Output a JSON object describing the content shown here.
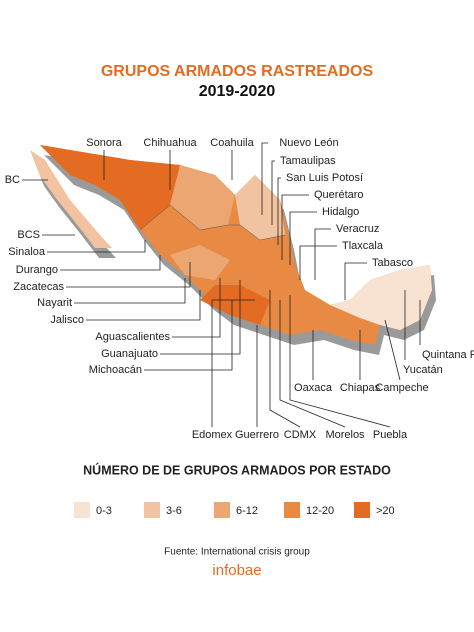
{
  "header": {
    "title": "GRUPOS ARMADOS RASTREADOS",
    "subtitle": "2019-2020"
  },
  "map": {
    "labels": [
      "Sonora",
      "Chihuahua",
      "Coahuila",
      "Nuevo León",
      "Tamaulipas",
      "San Luis Potosí",
      "Querétaro",
      "Hidalgo",
      "Veracruz",
      "Tlaxcala",
      "Tabasco",
      "BC",
      "BCS",
      "Sinaloa",
      "Durango",
      "Zacatecas",
      "Nayarit",
      "Jalisco",
      "Aguascalientes",
      "Guanajuato",
      "Michoacán",
      "Quintana R.",
      "Yucatán",
      "Oaxaca",
      "Chiapas",
      "Campeche",
      "Edomex",
      "Guerrero",
      "CDMX",
      "Morelos",
      "Puebla"
    ]
  },
  "legend": {
    "title": "NÚMERO DE DE GRUPOS ARMADOS POR ESTADO",
    "items": [
      {
        "label": "0-3",
        "color": "#f8e3d3"
      },
      {
        "label": "3-6",
        "color": "#f1c3a0"
      },
      {
        "label": "6-12",
        "color": "#eca671"
      },
      {
        "label": "12-20",
        "color": "#e88a43"
      },
      {
        "label": ">20",
        "color": "#e36c22"
      }
    ]
  },
  "footer": {
    "source": "Fuente: International crisis group",
    "brand": "infobae"
  }
}
